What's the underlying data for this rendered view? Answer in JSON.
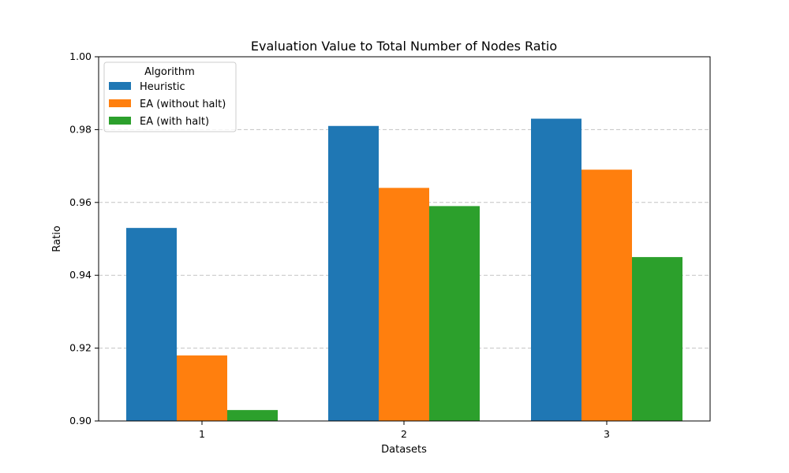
{
  "chart_data": {
    "type": "bar",
    "title": "Evaluation Value to Total Number of Nodes Ratio",
    "xlabel": "Datasets",
    "ylabel": "Ratio",
    "categories": [
      "1",
      "2",
      "3"
    ],
    "series": [
      {
        "name": "Heuristic",
        "values": [
          0.953,
          0.981,
          0.983
        ],
        "color": "#1f77b4"
      },
      {
        "name": "EA (without halt)",
        "values": [
          0.918,
          0.964,
          0.969
        ],
        "color": "#ff7f0e"
      },
      {
        "name": "EA (with halt)",
        "values": [
          0.903,
          0.959,
          0.945
        ],
        "color": "#2ca02c"
      }
    ],
    "ylim": [
      0.9,
      1.0
    ],
    "yticks": [
      "0.90",
      "0.92",
      "0.94",
      "0.96",
      "0.98",
      "1.00"
    ],
    "grid": "y-dashed",
    "legend": {
      "title": "Algorithm",
      "placement": "top-left"
    }
  }
}
